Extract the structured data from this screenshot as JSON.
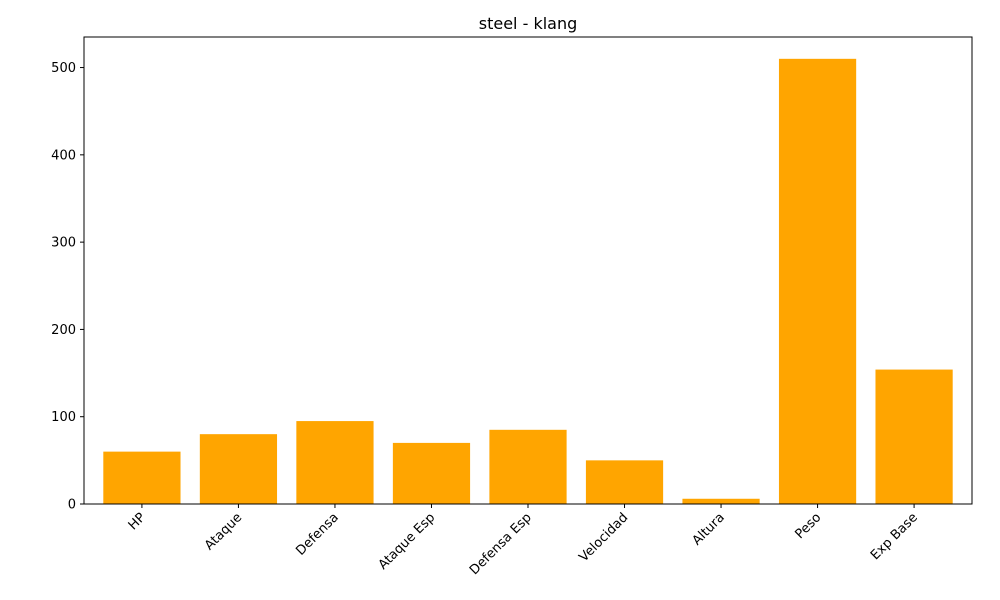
{
  "chart_data": {
    "type": "bar",
    "title": "steel - klang",
    "xlabel": "",
    "ylabel": "",
    "categories": [
      "HP",
      "Ataque",
      "Defensa",
      "Ataque Esp",
      "Defensa Esp",
      "Velocidad",
      "Altura",
      "Peso",
      "Exp Base"
    ],
    "values": [
      60,
      80,
      95,
      70,
      85,
      50,
      6,
      510,
      154
    ],
    "ylim": [
      0,
      535
    ],
    "yticks": [
      0,
      100,
      200,
      300,
      400,
      500
    ],
    "bar_color": "#FFA500",
    "grid": false,
    "legend": false
  }
}
